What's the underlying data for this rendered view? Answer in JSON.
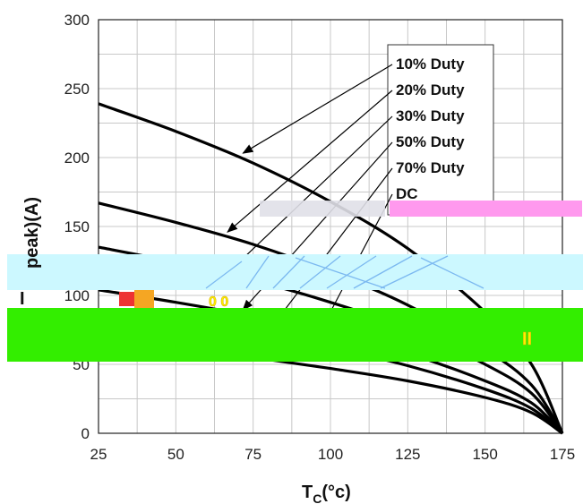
{
  "chart_data": {
    "type": "line",
    "xlabel": "T",
    "xlabel_sub": "C",
    "xlabel_unit": "(°c)",
    "ylabel": "I",
    "ylabel_visible": "peak)(A)",
    "xlim": [
      25,
      175
    ],
    "ylim": [
      0,
      300
    ],
    "xticks": [
      25,
      50,
      75,
      100,
      125,
      150,
      175
    ],
    "yticks": [
      0,
      50,
      100,
      150,
      200,
      250,
      300
    ],
    "grid": true,
    "legend_position": "top-right",
    "series": [
      {
        "name": "10% Duty",
        "x": [
          25,
          50,
          75,
          100,
          125,
          150,
          165,
          175
        ],
        "y": [
          239,
          219,
          196,
          168,
          134,
          88,
          50,
          0
        ]
      },
      {
        "name": "20% Duty",
        "x": [
          25,
          50,
          75,
          100,
          125,
          150,
          165,
          175
        ],
        "y": [
          167,
          153,
          137,
          117,
          93,
          61,
          35,
          0
        ]
      },
      {
        "name": "30% Duty",
        "x": [
          25,
          50,
          75,
          100,
          125,
          150,
          165,
          175
        ],
        "y": [
          135,
          124,
          111,
          95,
          76,
          50,
          29,
          0
        ]
      },
      {
        "name": "50% Duty",
        "x": [
          25,
          50,
          75,
          100,
          125,
          150,
          165,
          175
        ],
        "y": [
          104,
          95,
          85,
          73,
          58,
          38,
          22,
          0
        ]
      },
      {
        "name": "70% Duty",
        "x": [
          25,
          50,
          75,
          100,
          125,
          150,
          165,
          175
        ],
        "y": [
          88,
          80,
          72,
          62,
          49,
          32,
          18,
          0
        ]
      },
      {
        "name": "DC",
        "x": [
          25,
          50,
          75,
          100,
          125,
          150,
          165,
          175
        ],
        "y": [
          75,
          62,
          55,
          47,
          38,
          26,
          15,
          0
        ]
      }
    ]
  },
  "artifacts": {
    "green_band_label": "II",
    "mid_glyph": "0 0",
    "colors": {
      "green": "#33ee00",
      "cyan": "#ccf8ff",
      "magenta": "#ff99ee",
      "orange": "#f5a623",
      "red": "#ee3333",
      "yellow": "#ffee00",
      "line": "#000000",
      "grid": "#c8c8c8"
    }
  }
}
